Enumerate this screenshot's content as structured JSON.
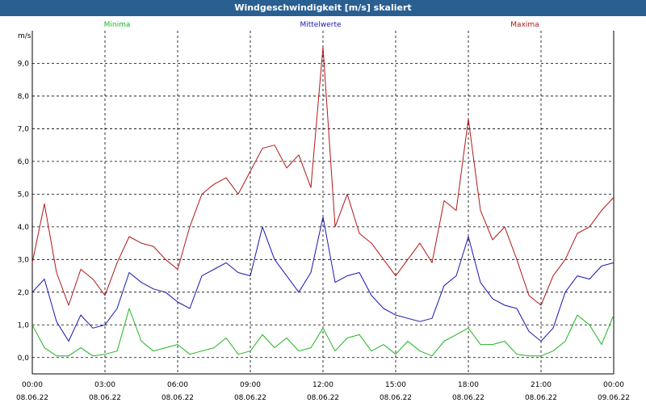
{
  "window": {
    "title": "Windgeschwindigkeit [m/s] skaliert"
  },
  "chart_data": {
    "type": "line",
    "title": "Windgeschwindigkeit [m/s] skaliert",
    "ylabel": "m/s",
    "xlabel": "",
    "ylim": [
      -0.5,
      10.0
    ],
    "xlim": [
      0,
      24
    ],
    "grid": true,
    "legend_placement": "top",
    "y_ticks": [
      {
        "value": 0,
        "label": "0,0"
      },
      {
        "value": 1,
        "label": "1,0"
      },
      {
        "value": 2,
        "label": "2,0"
      },
      {
        "value": 3,
        "label": "3,0"
      },
      {
        "value": 4,
        "label": "4,0"
      },
      {
        "value": 5,
        "label": "5,0"
      },
      {
        "value": 6,
        "label": "6,0"
      },
      {
        "value": 7,
        "label": "7,0"
      },
      {
        "value": 8,
        "label": "8,0"
      },
      {
        "value": 9,
        "label": "9,0"
      }
    ],
    "x_ticks": [
      {
        "value": 0,
        "time": "00:00",
        "date": "08.06.22"
      },
      {
        "value": 3,
        "time": "03:00",
        "date": "08.06.22"
      },
      {
        "value": 6,
        "time": "06:00",
        "date": "08.06.22"
      },
      {
        "value": 9,
        "time": "09:00",
        "date": "08.06.22"
      },
      {
        "value": 12,
        "time": "12:00",
        "date": "08.06.22"
      },
      {
        "value": 15,
        "time": "15:00",
        "date": "08.06.22"
      },
      {
        "value": 18,
        "time": "18:00",
        "date": "08.06.22"
      },
      {
        "value": 21,
        "time": "21:00",
        "date": "08.06.22"
      },
      {
        "value": 24,
        "time": "00:00",
        "date": "09.06.22"
      }
    ],
    "x": [
      0,
      0.5,
      1,
      1.5,
      2,
      2.5,
      3,
      3.5,
      4,
      4.5,
      5,
      5.5,
      6,
      6.5,
      7,
      7.5,
      8,
      8.5,
      9,
      9.5,
      10,
      10.5,
      11,
      11.5,
      12,
      12.5,
      13,
      13.5,
      14,
      14.5,
      15,
      15.5,
      16,
      16.5,
      17,
      17.5,
      18,
      18.5,
      19,
      19.5,
      20,
      20.5,
      21,
      21.5,
      22,
      22.5,
      23,
      23.5,
      24
    ],
    "series": [
      {
        "name": "Minima",
        "color": "#1fb51f",
        "values": [
          1.0,
          0.3,
          0.05,
          0.05,
          0.3,
          0.05,
          0.1,
          0.2,
          1.5,
          0.5,
          0.2,
          0.3,
          0.4,
          0.1,
          0.2,
          0.3,
          0.6,
          0.1,
          0.2,
          0.7,
          0.3,
          0.6,
          0.2,
          0.3,
          0.9,
          0.2,
          0.6,
          0.7,
          0.2,
          0.4,
          0.1,
          0.5,
          0.2,
          0.05,
          0.5,
          0.7,
          0.9,
          0.4,
          0.4,
          0.5,
          0.1,
          0.05,
          0.05,
          0.2,
          0.5,
          1.3,
          1.0,
          0.4,
          1.3
        ]
      },
      {
        "name": "Mittelwerte",
        "color": "#1616b4",
        "values": [
          2.0,
          2.4,
          1.1,
          0.5,
          1.3,
          0.9,
          1.0,
          1.5,
          2.6,
          2.3,
          2.1,
          2.0,
          1.7,
          1.5,
          2.5,
          2.7,
          2.9,
          2.6,
          2.5,
          4.0,
          3.0,
          2.5,
          2.0,
          2.6,
          4.3,
          2.3,
          2.5,
          2.6,
          1.9,
          1.5,
          1.3,
          1.2,
          1.1,
          1.2,
          2.2,
          2.5,
          3.7,
          2.3,
          1.8,
          1.6,
          1.5,
          0.8,
          0.5,
          0.9,
          2.0,
          2.5,
          2.4,
          2.8,
          2.9
        ]
      },
      {
        "name": "Maxima",
        "color": "#b11818",
        "values": [
          2.9,
          4.7,
          2.6,
          1.6,
          2.7,
          2.4,
          1.9,
          2.9,
          3.7,
          3.5,
          3.4,
          3.0,
          2.7,
          4.0,
          5.0,
          5.3,
          5.5,
          5.0,
          5.7,
          6.4,
          6.5,
          5.8,
          6.2,
          5.2,
          9.5,
          4.0,
          5.0,
          3.8,
          3.5,
          3.0,
          2.5,
          3.0,
          3.5,
          2.9,
          4.8,
          4.5,
          7.3,
          4.5,
          3.6,
          4.0,
          3.0,
          1.9,
          1.6,
          2.5,
          3.0,
          3.8,
          4.0,
          4.5,
          4.9
        ]
      }
    ]
  }
}
